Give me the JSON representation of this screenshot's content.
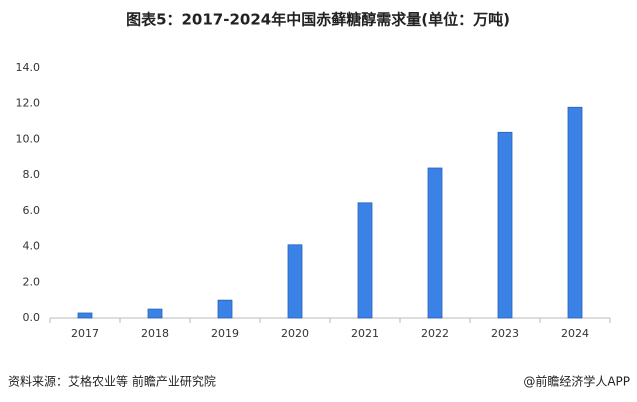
{
  "chart_data": {
    "type": "bar",
    "title": "图表5：2017-2024年中国赤藓糖醇需求量(单位：万吨)",
    "categories": [
      "2017",
      "2018",
      "2019",
      "2020",
      "2021",
      "2022",
      "2023",
      "2024"
    ],
    "values": [
      0.28,
      0.5,
      1.0,
      4.1,
      6.45,
      8.4,
      10.4,
      11.8
    ],
    "color": "#3b82e6",
    "ylim": [
      0,
      14
    ],
    "yticks": [
      {
        "value": 0,
        "label": "0.0"
      },
      {
        "value": 2,
        "label": "2.0"
      },
      {
        "value": 4,
        "label": "4.0"
      },
      {
        "value": 6,
        "label": "6.0"
      },
      {
        "value": 8,
        "label": "8.0"
      },
      {
        "value": 10,
        "label": "10.0"
      },
      {
        "value": 12,
        "label": "12.0"
      },
      {
        "value": 14,
        "label": "14.0"
      }
    ],
    "grid": false,
    "source": "资料来源：艾格农业等 前瞻产业研究院",
    "credit": "@前瞻经济学人APP"
  }
}
